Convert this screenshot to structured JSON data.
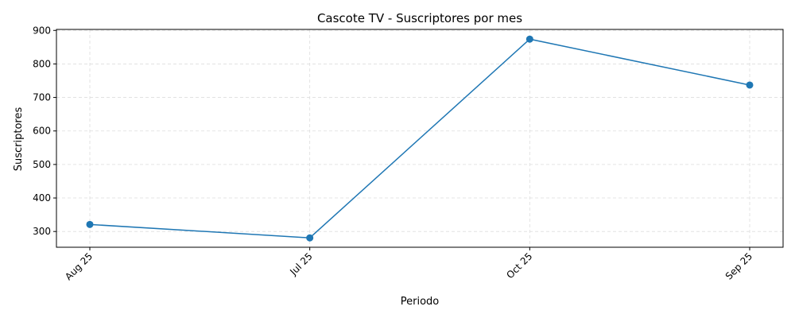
{
  "chart_data": {
    "type": "line",
    "title": "Cascote TV - Suscriptores por mes",
    "xlabel": "Periodo",
    "ylabel": "Suscriptores",
    "categories": [
      "Aug 25",
      "Jul 25",
      "Oct 25",
      "Sep 25"
    ],
    "series": [
      {
        "values": [
          321,
          281,
          874,
          737
        ]
      }
    ],
    "ylim": [
      253,
      903
    ],
    "yticks": [
      300,
      400,
      500,
      600,
      700,
      800,
      900
    ],
    "grid": true,
    "marker": "circle",
    "line_color": "#1f77b4"
  }
}
